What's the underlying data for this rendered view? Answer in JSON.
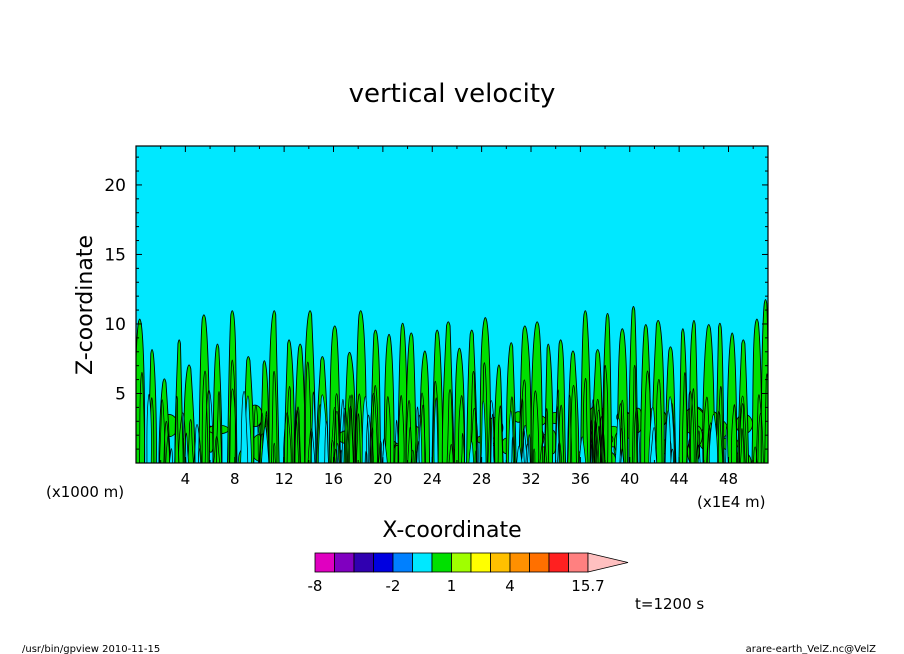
{
  "chart_data": {
    "type": "heatmap",
    "title": "vertical velocity",
    "xlabel": "X-coordinate",
    "ylabel": "Z-coordinate",
    "x_unit_label": "(x1000 m)",
    "x_unit_label_right": "(x1E4 m)",
    "xlim": [
      0,
      51.2
    ],
    "ylim": [
      0,
      22.8
    ],
    "x_ticks": [
      4,
      8,
      12,
      16,
      20,
      24,
      28,
      32,
      36,
      40,
      44,
      48
    ],
    "x_tick_labels": [
      "4",
      "8",
      "12",
      "16",
      "20",
      "24",
      "28",
      "32",
      "36",
      "40",
      "44",
      "48"
    ],
    "y_ticks": [
      5,
      10,
      15,
      20
    ],
    "y_tick_labels": [
      "5",
      "10",
      "15",
      "20"
    ],
    "background_color": "#00e8ff",
    "colorbar": {
      "boundaries": [
        -8,
        -6,
        -4,
        -3,
        -2,
        -1,
        0,
        1,
        2,
        3,
        4,
        7,
        10,
        13,
        15.7
      ],
      "labels": [
        "-8",
        "-2",
        "1",
        "4",
        "15.7"
      ],
      "colors": [
        "#e000c0",
        "#8000c0",
        "#3000b0",
        "#0000e0",
        "#0080ff",
        "#00e8ff",
        "#00e000",
        "#a0ff00",
        "#ffff00",
        "#ffc000",
        "#ff9000",
        "#ff7000",
        "#ff2020",
        "#ff8080"
      ],
      "extend_color": "#ffc0c0"
    },
    "plumes": [
      [
        0.3,
        10.5
      ],
      [
        1.3,
        8.3
      ],
      [
        2.3,
        6.2
      ],
      [
        3.5,
        9
      ],
      [
        4.3,
        7.2
      ],
      [
        5.5,
        10.8
      ],
      [
        6.6,
        8.7
      ],
      [
        7.8,
        11.1
      ],
      [
        9.1,
        7.8
      ],
      [
        10.4,
        7.5
      ],
      [
        11.2,
        11.1
      ],
      [
        12.4,
        9
      ],
      [
        13.3,
        8.7
      ],
      [
        14.1,
        11.1
      ],
      [
        15.1,
        7.8
      ],
      [
        16.1,
        10
      ],
      [
        17.3,
        8.1
      ],
      [
        18.2,
        11.1
      ],
      [
        19.4,
        9.7
      ],
      [
        20.5,
        9.4
      ],
      [
        21.6,
        10.2
      ],
      [
        22.3,
        9.5
      ],
      [
        23.4,
        8.2
      ],
      [
        24.4,
        9.7
      ],
      [
        25.3,
        10.3
      ],
      [
        26.2,
        8.4
      ],
      [
        27.2,
        9.7
      ],
      [
        28.3,
        10.6
      ],
      [
        29.4,
        7.2
      ],
      [
        30.4,
        8.8
      ],
      [
        31.5,
        10
      ],
      [
        32.5,
        10.3
      ],
      [
        33.4,
        8.7
      ],
      [
        34.4,
        9
      ],
      [
        35.4,
        8.2
      ],
      [
        36.4,
        11.1
      ],
      [
        37.4,
        8.3
      ],
      [
        38.2,
        10.9
      ],
      [
        39.4,
        9.8
      ],
      [
        40.3,
        11.4
      ],
      [
        41.3,
        10.1
      ],
      [
        42.3,
        10.4
      ],
      [
        43.3,
        8.5
      ],
      [
        44.3,
        9.8
      ],
      [
        45.2,
        10.4
      ],
      [
        46.4,
        10.1
      ],
      [
        47.3,
        10.2
      ],
      [
        48.3,
        9.5
      ],
      [
        49.2,
        9
      ],
      [
        50.3,
        10.5
      ],
      [
        51,
        11.9
      ]
    ]
  },
  "annotations": {
    "time": "t=1200 s",
    "footer_left": "/usr/bin/gpview   2010-11-15",
    "footer_right": "arare-earth_VelZ.nc@VelZ"
  }
}
